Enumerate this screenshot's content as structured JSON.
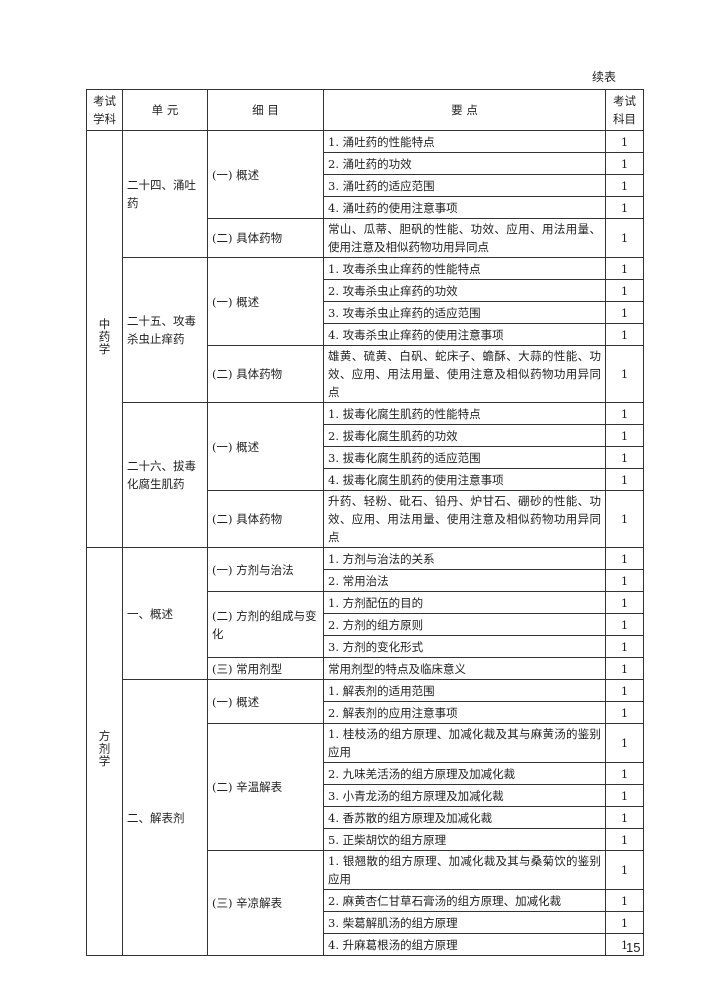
{
  "header": {
    "continued": "续表"
  },
  "table": {
    "columns": [
      "考试学科",
      "单 元",
      "细 目",
      "要 点",
      "考试科目"
    ],
    "subjects": [
      {
        "name": "中药学",
        "units": [
          {
            "name": "二十四、涌吐药",
            "details": [
              {
                "name": "(一) 概述",
                "points": [
                  {
                    "text": "1. 涌吐药的性能特点",
                    "level": 1
                  },
                  {
                    "text": "2. 涌吐药的功效",
                    "level": 1
                  },
                  {
                    "text": "3. 涌吐药的适应范围",
                    "level": 1
                  },
                  {
                    "text": "4. 涌吐药的使用注意事项",
                    "level": 1
                  }
                ]
              },
              {
                "name": "(二) 具体药物",
                "points": [
                  {
                    "text": "常山、瓜蒂、胆矾的性能、功效、应用、用法用量、使用注意及相似药物功用异同点",
                    "level": 1
                  }
                ]
              }
            ]
          },
          {
            "name": "二十五、攻毒杀虫止痒药",
            "details": [
              {
                "name": "(一) 概述",
                "points": [
                  {
                    "text": "1. 攻毒杀虫止痒药的性能特点",
                    "level": 1
                  },
                  {
                    "text": "2. 攻毒杀虫止痒药的功效",
                    "level": 1
                  },
                  {
                    "text": "3. 攻毒杀虫止痒药的适应范围",
                    "level": 1
                  },
                  {
                    "text": "4. 攻毒杀虫止痒药的使用注意事项",
                    "level": 1
                  }
                ]
              },
              {
                "name": "(二) 具体药物",
                "points": [
                  {
                    "text": "雄黄、硫黄、白矾、蛇床子、蟾酥、大蒜的性能、功效、应用、用法用量、使用注意及相似药物功用异同点",
                    "level": 1
                  }
                ]
              }
            ]
          },
          {
            "name": "二十六、拔毒化腐生肌药",
            "details": [
              {
                "name": "(一) 概述",
                "points": [
                  {
                    "text": "1. 拔毒化腐生肌药的性能特点",
                    "level": 1
                  },
                  {
                    "text": "2. 拔毒化腐生肌药的功效",
                    "level": 1
                  },
                  {
                    "text": "3. 拔毒化腐生肌药的适应范围",
                    "level": 1
                  },
                  {
                    "text": "4. 拔毒化腐生肌药的使用注意事项",
                    "level": 1
                  }
                ]
              },
              {
                "name": "(二) 具体药物",
                "points": [
                  {
                    "text": "升药、轻粉、砒石、铅丹、炉甘石、硼砂的性能、功效、应用、用法用量、使用注意及相似药物功用异同点",
                    "level": 1
                  }
                ]
              }
            ]
          }
        ]
      },
      {
        "name": "方剂学",
        "units": [
          {
            "name": "一、概述",
            "details": [
              {
                "name": "(一) 方剂与治法",
                "points": [
                  {
                    "text": "1. 方剂与治法的关系",
                    "level": 1
                  },
                  {
                    "text": "2. 常用治法",
                    "level": 1
                  }
                ]
              },
              {
                "name": "(二) 方剂的组成与变化",
                "points": [
                  {
                    "text": "1. 方剂配伍的目的",
                    "level": 1
                  },
                  {
                    "text": "2. 方剂的组方原则",
                    "level": 1
                  },
                  {
                    "text": "3. 方剂的变化形式",
                    "level": 1
                  }
                ]
              },
              {
                "name": "(三) 常用剂型",
                "points": [
                  {
                    "text": "常用剂型的特点及临床意义",
                    "level": 1
                  }
                ]
              }
            ]
          },
          {
            "name": "二、解表剂",
            "details": [
              {
                "name": "(一) 概述",
                "points": [
                  {
                    "text": "1. 解表剂的适用范围",
                    "level": 1
                  },
                  {
                    "text": "2. 解表剂的应用注意事项",
                    "level": 1
                  }
                ]
              },
              {
                "name": "(二) 辛温解表",
                "points": [
                  {
                    "text": "1. 桂枝汤的组方原理、加减化裁及其与麻黄汤的鉴别应用",
                    "level": 1
                  },
                  {
                    "text": "2. 九味羌活汤的组方原理及加减化裁",
                    "level": 1
                  },
                  {
                    "text": "3. 小青龙汤的组方原理及加减化裁",
                    "level": 1
                  },
                  {
                    "text": "4. 香苏散的组方原理及加减化裁",
                    "level": 1
                  },
                  {
                    "text": "5. 正柴胡饮的组方原理",
                    "level": 1
                  }
                ]
              },
              {
                "name": "(三) 辛凉解表",
                "points": [
                  {
                    "text": "1. 银翘散的组方原理、加减化裁及其与桑菊饮的鉴别应用",
                    "level": 1
                  },
                  {
                    "text": "2. 麻黄杏仁甘草石膏汤的组方原理、加减化裁",
                    "level": 1
                  },
                  {
                    "text": "3. 柴葛解肌汤的组方原理",
                    "level": 1
                  },
                  {
                    "text": "4. 升麻葛根汤的组方原理",
                    "level": 1
                  }
                ]
              }
            ]
          }
        ]
      }
    ]
  },
  "footer": {
    "page": "15"
  }
}
